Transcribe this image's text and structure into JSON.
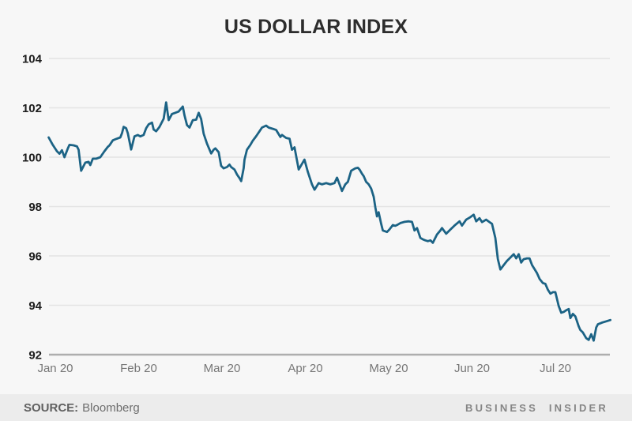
{
  "title": "US DOLLAR INDEX",
  "footer": {
    "source_label": "SOURCE:",
    "source_value": "Bloomberg",
    "brand": "BUSINESS INSIDER"
  },
  "colors": {
    "background": "#f7f7f7",
    "footer_background": "#ececec",
    "line": "#1c6385",
    "gridline": "#e4e4e4",
    "axis_line": "#aeaeae",
    "title_text": "#2d2d2d",
    "ytick_text": "#1c1c1c",
    "xtick_text": "#767676"
  },
  "chart_data": {
    "type": "line",
    "title": "US DOLLAR INDEX",
    "xlabel": "",
    "ylabel": "",
    "grid": "horizontal",
    "legend": "none",
    "x_unit": "months since Jan 20 tick",
    "x_tick_labels": [
      "Jan 20",
      "Feb 20",
      "Mar 20",
      "Apr 20",
      "May 20",
      "Jun 20",
      "Jul 20"
    ],
    "y_ticks": [
      104,
      102,
      100,
      98,
      96,
      94,
      92
    ],
    "ylim": [
      92,
      104
    ],
    "xlim": [
      -0.08,
      6.67
    ],
    "series": [
      {
        "name": "US Dollar Index",
        "points": [
          [
            -0.08,
            100.8
          ],
          [
            -0.03,
            100.5
          ],
          [
            0.02,
            100.24
          ],
          [
            0.05,
            100.14
          ],
          [
            0.08,
            100.28
          ],
          [
            0.11,
            100.0
          ],
          [
            0.15,
            100.35
          ],
          [
            0.17,
            100.5
          ],
          [
            0.22,
            100.48
          ],
          [
            0.26,
            100.44
          ],
          [
            0.28,
            100.3
          ],
          [
            0.31,
            99.45
          ],
          [
            0.36,
            99.78
          ],
          [
            0.4,
            99.81
          ],
          [
            0.42,
            99.68
          ],
          [
            0.45,
            99.94
          ],
          [
            0.49,
            99.94
          ],
          [
            0.54,
            100.0
          ],
          [
            0.59,
            100.24
          ],
          [
            0.63,
            100.42
          ],
          [
            0.65,
            100.48
          ],
          [
            0.69,
            100.68
          ],
          [
            0.73,
            100.74
          ],
          [
            0.78,
            100.8
          ],
          [
            0.8,
            100.97
          ],
          [
            0.82,
            101.23
          ],
          [
            0.85,
            101.17
          ],
          [
            0.87,
            100.97
          ],
          [
            0.91,
            100.31
          ],
          [
            0.95,
            100.84
          ],
          [
            0.99,
            100.9
          ],
          [
            1.02,
            100.84
          ],
          [
            1.06,
            100.9
          ],
          [
            1.09,
            101.17
          ],
          [
            1.12,
            101.33
          ],
          [
            1.16,
            101.4
          ],
          [
            1.18,
            101.12
          ],
          [
            1.21,
            101.05
          ],
          [
            1.25,
            101.23
          ],
          [
            1.3,
            101.56
          ],
          [
            1.33,
            102.22
          ],
          [
            1.36,
            101.5
          ],
          [
            1.4,
            101.75
          ],
          [
            1.44,
            101.8
          ],
          [
            1.48,
            101.85
          ],
          [
            1.53,
            102.05
          ],
          [
            1.55,
            101.7
          ],
          [
            1.58,
            101.3
          ],
          [
            1.61,
            101.2
          ],
          [
            1.65,
            101.5
          ],
          [
            1.69,
            101.52
          ],
          [
            1.72,
            101.8
          ],
          [
            1.75,
            101.55
          ],
          [
            1.78,
            100.95
          ],
          [
            1.82,
            100.55
          ],
          [
            1.87,
            100.15
          ],
          [
            1.9,
            100.3
          ],
          [
            1.92,
            100.36
          ],
          [
            1.96,
            100.2
          ],
          [
            1.99,
            99.65
          ],
          [
            2.02,
            99.55
          ],
          [
            2.06,
            99.6
          ],
          [
            2.09,
            99.7
          ],
          [
            2.11,
            99.6
          ],
          [
            2.15,
            99.5
          ],
          [
            2.18,
            99.3
          ],
          [
            2.21,
            99.15
          ],
          [
            2.23,
            99.03
          ],
          [
            2.26,
            99.55
          ],
          [
            2.27,
            99.9
          ],
          [
            2.3,
            100.3
          ],
          [
            2.34,
            100.5
          ],
          [
            2.37,
            100.67
          ],
          [
            2.41,
            100.85
          ],
          [
            2.45,
            101.05
          ],
          [
            2.48,
            101.2
          ],
          [
            2.53,
            101.28
          ],
          [
            2.56,
            101.2
          ],
          [
            2.61,
            101.15
          ],
          [
            2.65,
            101.1
          ],
          [
            2.7,
            100.82
          ],
          [
            2.72,
            100.9
          ],
          [
            2.77,
            100.78
          ],
          [
            2.81,
            100.75
          ],
          [
            2.84,
            100.3
          ],
          [
            2.87,
            100.4
          ],
          [
            2.92,
            99.5
          ],
          [
            2.99,
            99.9
          ],
          [
            3.03,
            99.4
          ],
          [
            3.08,
            98.9
          ],
          [
            3.11,
            98.68
          ],
          [
            3.16,
            98.95
          ],
          [
            3.2,
            98.9
          ],
          [
            3.25,
            98.95
          ],
          [
            3.3,
            98.9
          ],
          [
            3.35,
            98.95
          ],
          [
            3.38,
            99.17
          ],
          [
            3.41,
            98.9
          ],
          [
            3.44,
            98.63
          ],
          [
            3.48,
            98.9
          ],
          [
            3.51,
            99.0
          ],
          [
            3.55,
            99.45
          ],
          [
            3.6,
            99.55
          ],
          [
            3.63,
            99.57
          ],
          [
            3.65,
            99.5
          ],
          [
            3.68,
            99.33
          ],
          [
            3.7,
            99.23
          ],
          [
            3.73,
            99.0
          ],
          [
            3.76,
            98.9
          ],
          [
            3.79,
            98.73
          ],
          [
            3.82,
            98.4
          ],
          [
            3.84,
            97.97
          ],
          [
            3.86,
            97.6
          ],
          [
            3.88,
            97.77
          ],
          [
            3.91,
            97.3
          ],
          [
            3.93,
            97.03
          ],
          [
            3.98,
            96.97
          ],
          [
            4.01,
            97.08
          ],
          [
            4.05,
            97.25
          ],
          [
            4.08,
            97.22
          ],
          [
            4.1,
            97.25
          ],
          [
            4.14,
            97.33
          ],
          [
            4.19,
            97.38
          ],
          [
            4.24,
            97.4
          ],
          [
            4.28,
            97.38
          ],
          [
            4.31,
            97.03
          ],
          [
            4.34,
            97.13
          ],
          [
            4.38,
            96.73
          ],
          [
            4.41,
            96.67
          ],
          [
            4.44,
            96.63
          ],
          [
            4.47,
            96.6
          ],
          [
            4.5,
            96.63
          ],
          [
            4.53,
            96.53
          ],
          [
            4.58,
            96.87
          ],
          [
            4.62,
            97.03
          ],
          [
            4.64,
            97.13
          ],
          [
            4.69,
            96.9
          ],
          [
            4.74,
            97.07
          ],
          [
            4.79,
            97.23
          ],
          [
            4.85,
            97.4
          ],
          [
            4.88,
            97.23
          ],
          [
            4.93,
            97.47
          ],
          [
            4.98,
            97.57
          ],
          [
            5.02,
            97.67
          ],
          [
            5.05,
            97.4
          ],
          [
            5.09,
            97.53
          ],
          [
            5.12,
            97.37
          ],
          [
            5.17,
            97.47
          ],
          [
            5.21,
            97.37
          ],
          [
            5.24,
            97.3
          ],
          [
            5.28,
            96.73
          ],
          [
            5.31,
            95.87
          ],
          [
            5.34,
            95.45
          ],
          [
            5.38,
            95.63
          ],
          [
            5.42,
            95.8
          ],
          [
            5.45,
            95.9
          ],
          [
            5.5,
            96.07
          ],
          [
            5.53,
            95.9
          ],
          [
            5.56,
            96.07
          ],
          [
            5.59,
            95.73
          ],
          [
            5.62,
            95.87
          ],
          [
            5.66,
            95.9
          ],
          [
            5.69,
            95.9
          ],
          [
            5.72,
            95.63
          ],
          [
            5.75,
            95.47
          ],
          [
            5.78,
            95.3
          ],
          [
            5.81,
            95.07
          ],
          [
            5.85,
            94.9
          ],
          [
            5.88,
            94.87
          ],
          [
            5.91,
            94.63
          ],
          [
            5.94,
            94.47
          ],
          [
            5.97,
            94.53
          ],
          [
            6.0,
            94.53
          ],
          [
            6.04,
            93.97
          ],
          [
            6.07,
            93.7
          ],
          [
            6.1,
            93.73
          ],
          [
            6.13,
            93.8
          ],
          [
            6.16,
            93.85
          ],
          [
            6.18,
            93.48
          ],
          [
            6.21,
            93.65
          ],
          [
            6.24,
            93.55
          ],
          [
            6.28,
            93.15
          ],
          [
            6.3,
            93.0
          ],
          [
            6.33,
            92.9
          ],
          [
            6.37,
            92.67
          ],
          [
            6.4,
            92.6
          ],
          [
            6.43,
            92.83
          ],
          [
            6.46,
            92.57
          ],
          [
            6.49,
            93.1
          ],
          [
            6.51,
            93.23
          ],
          [
            6.56,
            93.3
          ],
          [
            6.61,
            93.35
          ],
          [
            6.66,
            93.4
          ]
        ]
      }
    ]
  }
}
